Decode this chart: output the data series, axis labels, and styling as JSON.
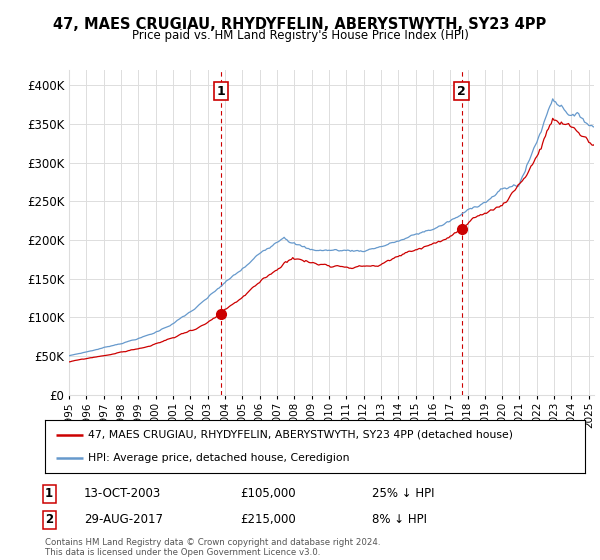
{
  "title": "47, MAES CRUGIAU, RHYDYFELIN, ABERYSTWYTH, SY23 4PP",
  "subtitle": "Price paid vs. HM Land Registry's House Price Index (HPI)",
  "xlim_start": 1995.0,
  "xlim_end": 2025.3,
  "ylim": [
    0,
    420000
  ],
  "yticks": [
    0,
    50000,
    100000,
    150000,
    200000,
    250000,
    300000,
    350000,
    400000
  ],
  "sale1_date": 2003.79,
  "sale1_price": 105000,
  "sale1_label": "1",
  "sale2_date": 2017.66,
  "sale2_price": 215000,
  "sale2_label": "2",
  "red_line_color": "#cc0000",
  "blue_line_color": "#6699cc",
  "dashed_line_color": "#cc0000",
  "legend_label_red": "47, MAES CRUGIAU, RHYDYFELIN, ABERYSTWYTH, SY23 4PP (detached house)",
  "legend_label_blue": "HPI: Average price, detached house, Ceredigion",
  "sale1_date_str": "13-OCT-2003",
  "sale1_price_str": "£105,000",
  "sale1_pct_str": "25% ↓ HPI",
  "sale2_date_str": "29-AUG-2017",
  "sale2_price_str": "£215,000",
  "sale2_pct_str": "8% ↓ HPI",
  "footer": "Contains HM Land Registry data © Crown copyright and database right 2024.\nThis data is licensed under the Open Government Licence v3.0.",
  "background_color": "#ffffff",
  "grid_color": "#dddddd"
}
